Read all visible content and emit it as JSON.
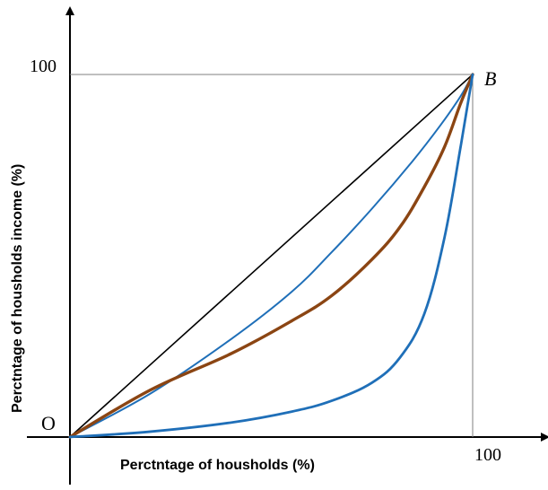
{
  "chart_data": {
    "type": "line",
    "xlabel": "Perctntage of housholds (%)",
    "ylabel": "Perctntage of housholds income (%)",
    "xlim": [
      0,
      100
    ],
    "ylim": [
      0,
      100
    ],
    "origin_label": "O",
    "x_tick_labels": [
      "100"
    ],
    "y_tick_labels": [
      "100"
    ],
    "point_label": "B",
    "grid": false,
    "reference_lines": [
      "x = 100",
      "y = 100"
    ],
    "series": [
      {
        "color": "#000000",
        "x": [
          0,
          100
        ],
        "y": [
          0,
          100
        ]
      },
      {
        "color": "#1f6fb8",
        "x": [
          0,
          20,
          40,
          55,
          65,
          75,
          85,
          92,
          97,
          100
        ],
        "y": [
          0,
          12,
          27,
          40,
          51,
          63,
          76,
          86,
          94,
          100
        ]
      },
      {
        "color": "#8b4513",
        "x": [
          0,
          20,
          40,
          55,
          65,
          75,
          82,
          88,
          93,
          97,
          100
        ],
        "y": [
          0,
          13,
          23,
          32,
          39,
          49,
          58,
          69,
          80,
          92,
          100
        ]
      },
      {
        "color": "#1f6fb8",
        "x": [
          0,
          20,
          40,
          55,
          65,
          75,
          82,
          88,
          93,
          97,
          100
        ],
        "y": [
          0,
          1.5,
          4,
          7,
          10,
          15,
          22,
          34,
          55,
          80,
          100
        ]
      }
    ]
  }
}
